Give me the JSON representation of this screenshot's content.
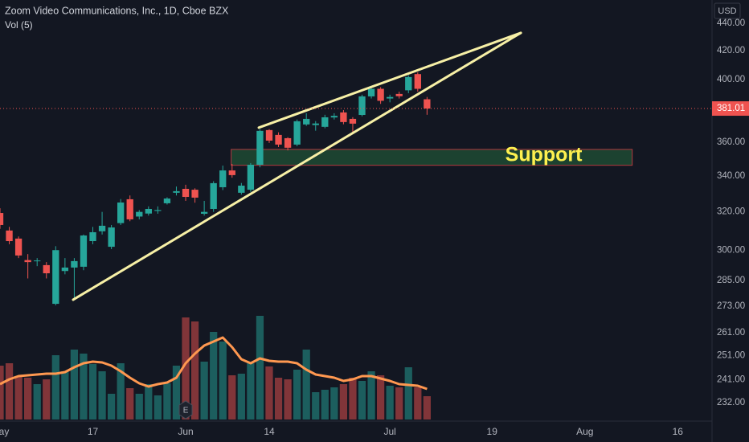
{
  "chart_data": {
    "type": "candlestick",
    "title": "Zoom Video Communications, Inc., 1D, Cboe BZX",
    "subtitle": "Vol (5)",
    "currency": "USD",
    "log_scale": true,
    "grid": false,
    "up_color": "#26a69a",
    "down_color": "#ef5350",
    "xlim": [
      0,
      76.7
    ],
    "xticks": [
      {
        "value": 0,
        "label": "May"
      },
      {
        "value": 10,
        "label": "17"
      },
      {
        "value": 20,
        "label": "Jun"
      },
      {
        "value": 29,
        "label": "14"
      },
      {
        "value": 42,
        "label": "Jul"
      },
      {
        "value": 53,
        "label": "19"
      },
      {
        "value": 63,
        "label": "Aug"
      },
      {
        "value": 73,
        "label": "16"
      }
    ],
    "ylim": [
      225.4,
      457.6
    ],
    "yticks": [
      {
        "value": 440,
        "label": "440.00"
      },
      {
        "value": 420,
        "label": "420.00"
      },
      {
        "value": 400,
        "label": "400.00"
      },
      {
        "value": 360,
        "label": "360.00"
      },
      {
        "value": 340,
        "label": "340.00"
      },
      {
        "value": 320,
        "label": "320.00"
      },
      {
        "value": 300,
        "label": "300.00"
      },
      {
        "value": 285,
        "label": "285.00"
      },
      {
        "value": 273,
        "label": "273.00"
      },
      {
        "value": 261,
        "label": "261.00"
      },
      {
        "value": 251,
        "label": "251.00"
      },
      {
        "value": 241,
        "label": "241.00"
      },
      {
        "value": 232,
        "label": "232.00"
      }
    ],
    "open": [
      319.4,
      310.1,
      305.9,
      295,
      294.5,
      292.5,
      274,
      289.6,
      291.3,
      291.7,
      304.6,
      309.7,
      301.7,
      314,
      326.9,
      317.5,
      319.1,
      320.5,
      324.7,
      330.5,
      332.7,
      332.2,
      319,
      321.6,
      333.6,
      343.2,
      330.5,
      332.2,
      346.5,
      367.4,
      364.4,
      362.4,
      358.5,
      370.9,
      370.5,
      369.4,
      375.3,
      378.5,
      374.4,
      376.9,
      388.9,
      393.9,
      387.5,
      390.5,
      392.9,
      403.8,
      387
    ],
    "high": [
      322,
      312,
      307,
      298,
      296,
      294,
      302,
      296,
      296,
      308,
      312,
      320,
      313,
      327,
      329,
      321,
      323,
      323,
      328,
      334,
      335,
      333,
      326,
      337,
      346,
      347,
      336,
      347.5,
      368,
      368,
      366,
      363,
      374,
      378,
      373,
      377,
      378,
      380,
      375.5,
      390,
      395,
      395,
      390,
      392,
      403,
      405,
      388.5
    ],
    "low": [
      311,
      303,
      296,
      286,
      292,
      286,
      273.3,
      288,
      276.5,
      290,
      303,
      308,
      300.5,
      313,
      315,
      316,
      318,
      319,
      324,
      329,
      326,
      325,
      318,
      320,
      332,
      339,
      329.5,
      331,
      345,
      359.5,
      357,
      355,
      357.5,
      370,
      367,
      368.5,
      374,
      371,
      366,
      376,
      387.5,
      384,
      385,
      387.5,
      391,
      392,
      377
    ],
    "close": [
      313,
      304.6,
      297.3,
      294,
      294.8,
      288.5,
      300,
      291.3,
      294.5,
      307.5,
      309.2,
      312.6,
      311.7,
      325.1,
      316,
      320,
      321.6,
      321,
      327.3,
      331.4,
      328.2,
      327.8,
      320,
      335.9,
      343.2,
      340.5,
      334.5,
      346.5,
      366.9,
      360.9,
      358.5,
      356.6,
      372.9,
      374.4,
      371.5,
      375.4,
      376.3,
      372.4,
      371.4,
      388.9,
      393.9,
      386,
      388.5,
      389,
      401.8,
      393.9,
      381.01
    ],
    "volume_ylim": [
      0,
      26.1
    ],
    "volume": [
      3.35,
      3.5,
      2.7,
      2.6,
      2.2,
      2.5,
      4.0,
      3.0,
      4.35,
      4.1,
      3.45,
      3.0,
      1.6,
      3.5,
      1.95,
      1.6,
      2.2,
      1.5,
      2.25,
      3.35,
      6.35,
      6.1,
      3.6,
      5.45,
      4.85,
      2.75,
      2.85,
      3.5,
      6.45,
      3.3,
      2.6,
      2.5,
      3.1,
      4.35,
      1.7,
      1.85,
      2.0,
      2.2,
      2.6,
      2.4,
      3.0,
      2.75,
      2.1,
      2.0,
      3.25,
      2.0,
      1.45
    ],
    "volume_ma": [
      2.2,
      2.5,
      2.7,
      2.75,
      2.8,
      2.85,
      2.85,
      2.95,
      3.25,
      3.5,
      3.6,
      3.55,
      3.35,
      3.0,
      2.6,
      2.25,
      2.05,
      2.2,
      2.3,
      2.6,
      3.5,
      4.1,
      4.6,
      4.85,
      5.1,
      4.5,
      3.75,
      3.5,
      3.8,
      3.65,
      3.6,
      3.6,
      3.5,
      3.1,
      2.8,
      2.7,
      2.6,
      2.4,
      2.5,
      2.7,
      2.7,
      2.55,
      2.4,
      2.2,
      2.15,
      2.1,
      1.9
    ],
    "volume_ma_color": "#ff9850",
    "trendlines": [
      {
        "x": [
          7.88,
          56.1
        ],
        "y": [
          275.9,
          432.9
        ],
        "color": "#f7f0a6"
      },
      {
        "x": [
          27.88,
          56.1
        ],
        "y": [
          368.9,
          432.9
        ],
        "color": "#f7f0a6"
      }
    ],
    "zones": [
      {
        "label": "Support",
        "x": [
          24.9,
          68.1
        ],
        "y": [
          346.2,
          355.6
        ],
        "fill": "#1f4a33",
        "border": "#b2393f",
        "label_color": "#fdf04f"
      }
    ],
    "events": [
      {
        "x": 20,
        "label": "E"
      }
    ]
  }
}
